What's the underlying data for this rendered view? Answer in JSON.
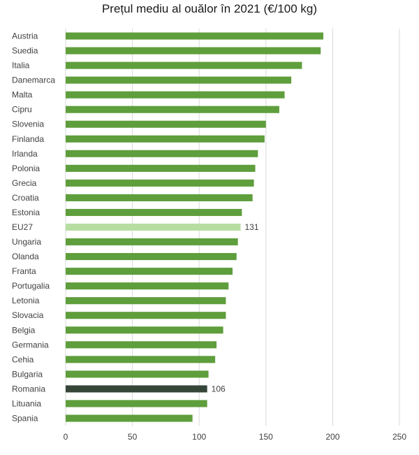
{
  "chart_data": {
    "type": "bar",
    "orientation": "horizontal",
    "title": "Prețul mediu al ouălor în 2021 (€/100 kg)",
    "xlabel": "",
    "ylabel": "",
    "xlim": [
      0,
      250
    ],
    "xticks": [
      0,
      50,
      100,
      150,
      200,
      250
    ],
    "grid": "vertical",
    "legend": "none",
    "categories": [
      "Austria",
      "Suedia",
      "Italia",
      "Danemarca",
      "Malta",
      "Cipru",
      "Slovenia",
      "Finlanda",
      "Irlanda",
      "Polonia",
      "Grecia",
      "Croatia",
      "Estonia",
      "EU27",
      "Ungaria",
      "Olanda",
      "Franta",
      "Portugalia",
      "Letonia",
      "Slovacia",
      "Belgia",
      "Germania",
      "Cehia",
      "Bulgaria",
      "Romania",
      "Lituania",
      "Spania"
    ],
    "values": [
      193,
      191,
      177,
      169,
      164,
      160,
      150,
      149,
      144,
      142,
      141,
      140,
      132,
      131,
      129,
      128,
      125,
      122,
      120,
      120,
      118,
      113,
      112,
      107,
      106,
      106,
      95
    ],
    "data_labels": {
      "EU27": "131",
      "Romania": "106"
    },
    "colors": {
      "default": "#5f9e3c",
      "EU27": "#b7dea1",
      "Romania": "#354639",
      "grid": "#d9d9d9",
      "text": "#404040"
    }
  }
}
